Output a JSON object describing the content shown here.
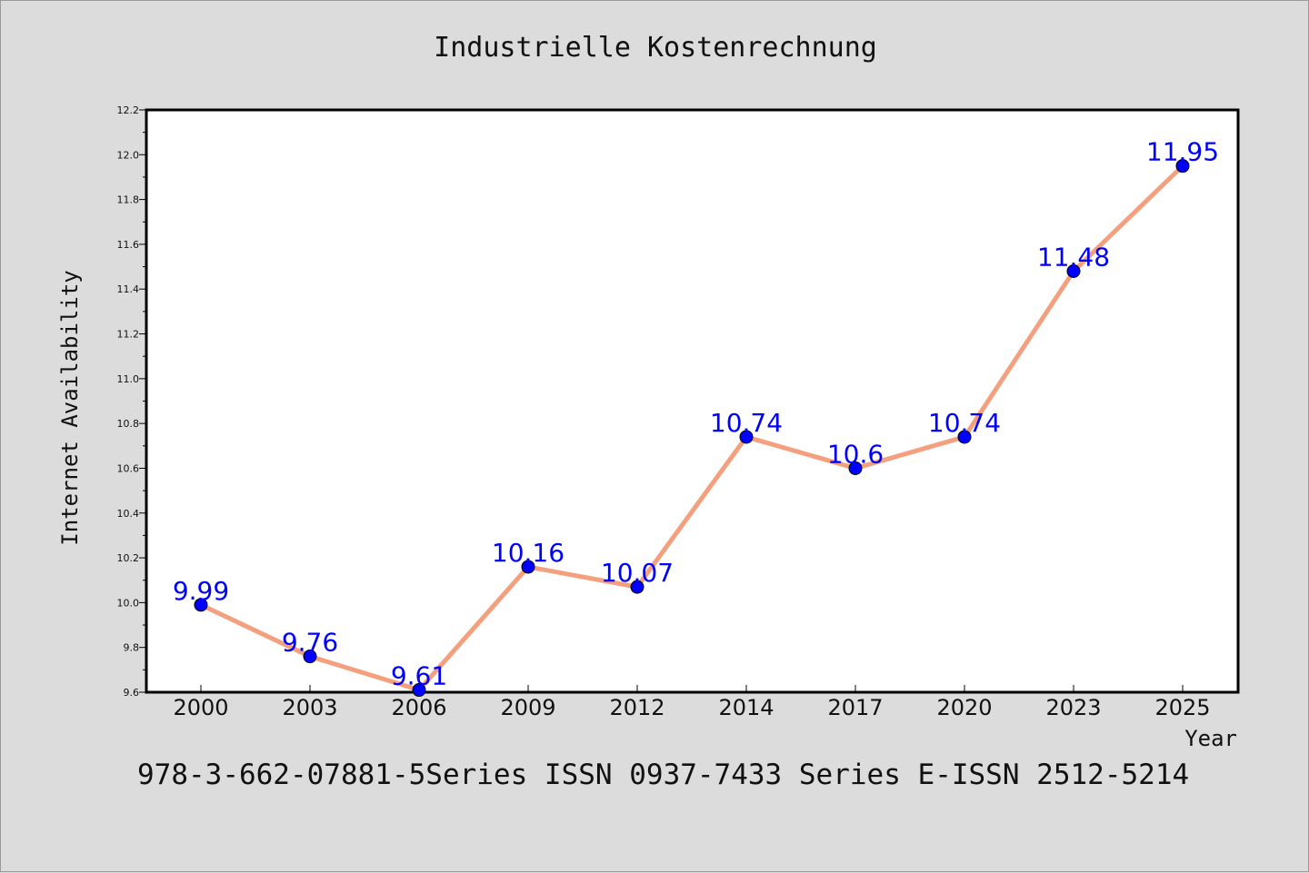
{
  "chart_data": {
    "type": "line",
    "title": "Industrielle Kostenrechnung",
    "xlabel": "Year",
    "ylabel": "Internet Availability",
    "categories": [
      "2000",
      "2003",
      "2006",
      "2009",
      "2012",
      "2014",
      "2017",
      "2020",
      "2023",
      "2025"
    ],
    "series": [
      {
        "values": [
          9.99,
          9.76,
          9.61,
          10.16,
          10.07,
          10.74,
          10.6,
          10.74,
          11.48,
          11.95
        ]
      }
    ],
    "data_labels": [
      "9.99",
      "9.76",
      "9.61",
      "10.16",
      "10.07",
      "10.74",
      "10.6",
      "10.74",
      "11.48",
      "11.95"
    ],
    "ylim": [
      9.6,
      12.2
    ],
    "yticks": [
      "9.6",
      "9.8",
      "10.0",
      "10.2",
      "10.4",
      "10.6",
      "10.8",
      "11.0",
      "11.2",
      "11.4",
      "11.6",
      "11.8",
      "12.0",
      "12.2"
    ],
    "grid": false,
    "colors": {
      "line": "#f4a07e",
      "marker": "#0000ff",
      "data_label": "#0000ff",
      "background": "#dcdcdc",
      "plot_area": "#ffffff"
    }
  },
  "footer": "978-3-662-07881-5Series ISSN 0937-7433 Series E-ISSN 2512-5214"
}
